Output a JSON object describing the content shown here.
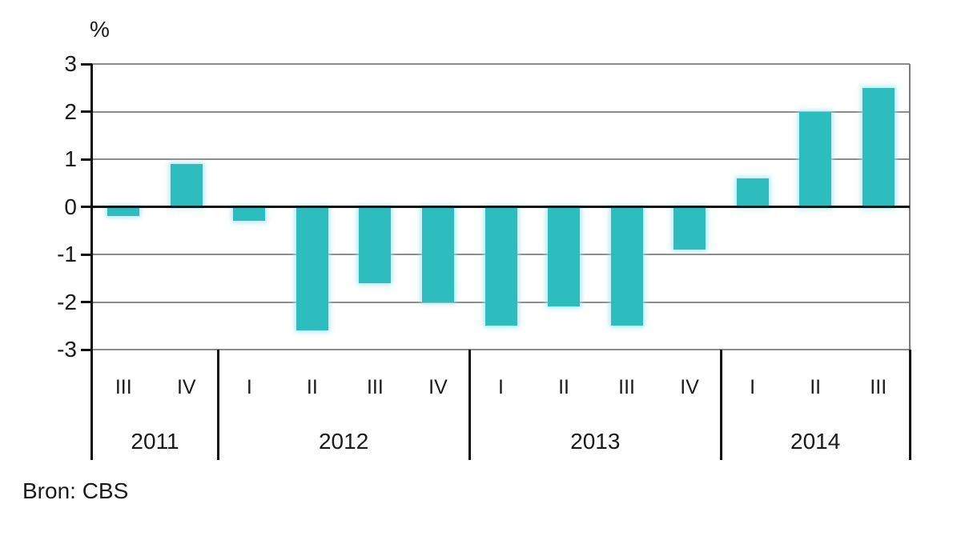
{
  "chart_data": {
    "type": "bar",
    "title": "",
    "ylabel": "%",
    "xlabel": "",
    "ylim": [
      -3,
      3
    ],
    "y_ticks": [
      3,
      2,
      1,
      0,
      -1,
      -2,
      -3
    ],
    "grid": true,
    "legend": "none",
    "bar_color": "#2EBDBE",
    "gridline_color": "#8c8c8c",
    "groups": [
      {
        "year": "2011",
        "quarters": [
          "III",
          "IV"
        ],
        "values": [
          -0.2,
          0.9
        ]
      },
      {
        "year": "2012",
        "quarters": [
          "I",
          "II",
          "III",
          "IV"
        ],
        "values": [
          -0.3,
          -2.6,
          -1.6,
          -2.0
        ]
      },
      {
        "year": "2013",
        "quarters": [
          "I",
          "II",
          "III",
          "IV"
        ],
        "values": [
          -2.5,
          -2.1,
          -2.5,
          -0.9
        ]
      },
      {
        "year": "2014",
        "quarters": [
          "I",
          "II",
          "III"
        ],
        "values": [
          0.6,
          2.0,
          2.5
        ]
      }
    ],
    "source": "Bron: CBS"
  }
}
